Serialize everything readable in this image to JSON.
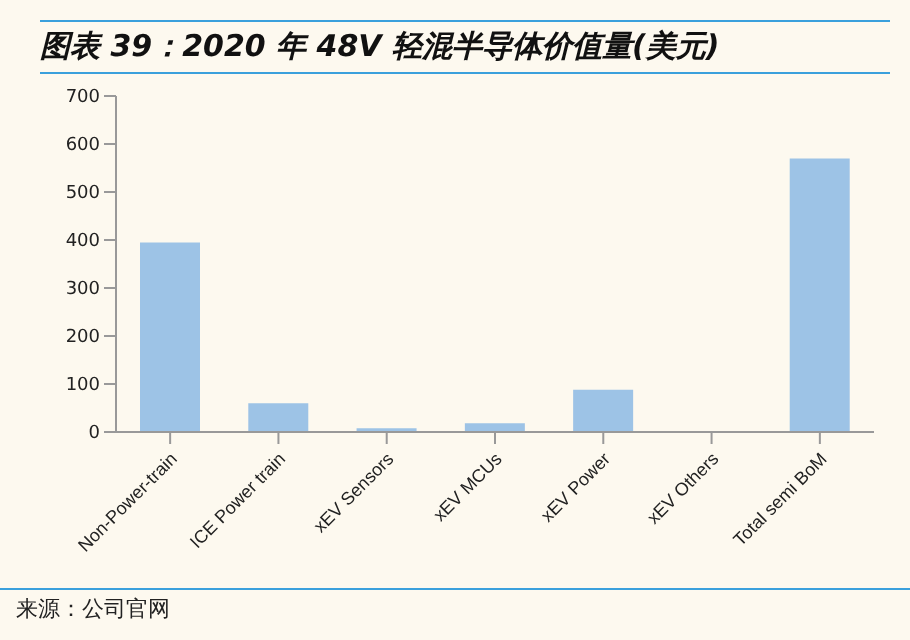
{
  "chart_data": {
    "type": "bar",
    "title": "图表 39：2020 年 48V 轻混半导体价值量(美元)",
    "categories": [
      "Non-Power-train",
      "ICE Power train",
      "xEV Sensors",
      "xEV MCUs",
      "xEV Power",
      "xEV Others",
      "Total semi BoM"
    ],
    "values": [
      395,
      60,
      8,
      18,
      88,
      0,
      570
    ],
    "color": "#9dc3e6",
    "ylim": [
      0,
      700
    ],
    "yticks": [
      0,
      100,
      200,
      300,
      400,
      500,
      600,
      700
    ],
    "grid": false,
    "annotations": [
      "来源：公司官网"
    ]
  }
}
